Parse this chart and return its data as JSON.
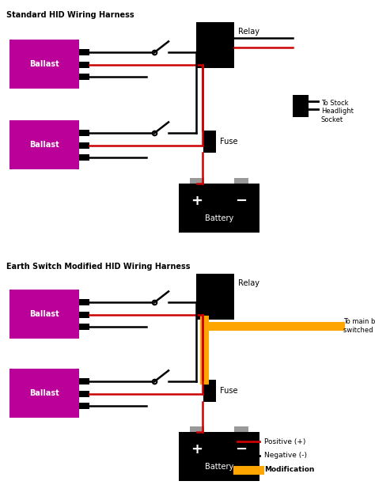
{
  "title1": "Standard HID Wiring Harness",
  "title2": "Earth Switch Modified HID Wiring Harness",
  "bg_color": "#ffffff",
  "magenta": "#BB0099",
  "black": "#000000",
  "red": "#CC0000",
  "orange": "#FFA500",
  "gray": "#999999",
  "white": "#ffffff",
  "legend_positive": "Positive (+)",
  "legend_negative": "Negative (-)",
  "legend_modification": "Modification",
  "fig_w": 4.74,
  "fig_h": 6.32,
  "dpi": 100
}
